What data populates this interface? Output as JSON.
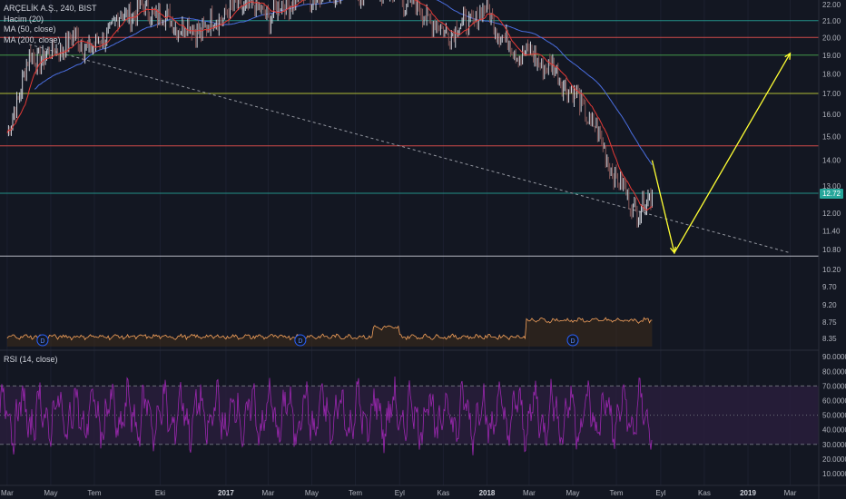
{
  "legend": {
    "symbol": "ARÇELİK A.Ş., 240, BIST",
    "volume": "Hacim (20)",
    "ma50": "MA (50, close)",
    "ma200": "MA (200, close)",
    "rsi": "RSI (14, close)"
  },
  "colors": {
    "background": "#131722",
    "price": "#c8ccd6",
    "ma50": "#e53935",
    "ma200": "#4a6ee0",
    "volume": "#f7a35c",
    "rsi": "#9c27b0",
    "rsi_band": "#2a1e3d",
    "arrow": "#ffff33",
    "badge": "#26a69a"
  },
  "current_price": "12.72",
  "chart_data": [
    {
      "type": "line",
      "title": "ARÇELİK A.Ş., 240, BIST",
      "y_ticks": [
        "22.00",
        "21.00",
        "20.00",
        "19.00",
        "18.00",
        "17.00",
        "16.00",
        "15.00",
        "14.00",
        "13.00",
        "12.00",
        "11.40",
        "10.80",
        "10.20",
        "9.70",
        "9.20",
        "8.75",
        "8.35"
      ],
      "x_ticks": [
        "Mar",
        "May",
        "Tem",
        "Eki",
        "2017",
        "Mar",
        "May",
        "Tem",
        "Eyl",
        "Kas",
        "2018",
        "Mar",
        "May",
        "Tem",
        "Eyl",
        "Kas",
        "2019",
        "Mar"
      ],
      "ylim": [
        8.2,
        22.2
      ],
      "scale": "log",
      "horizontal_levels": [
        {
          "value": 21.0,
          "color": "#26a69a"
        },
        {
          "value": 20.0,
          "color": "#ef5350"
        },
        {
          "value": 19.0,
          "color": "#4caf50"
        },
        {
          "value": 17.0,
          "color": "#cddc39"
        },
        {
          "value": 14.6,
          "color": "#ef5350"
        },
        {
          "value": 12.72,
          "color": "#26a69a"
        },
        {
          "value": 10.6,
          "color": "#d1d4dc"
        }
      ],
      "price_series": [
        {
          "date": "2016-03",
          "value": 15.0
        },
        {
          "date": "2016-04",
          "value": 18.8
        },
        {
          "date": "2016-05",
          "value": 19.0
        },
        {
          "date": "2016-06",
          "value": 20.0
        },
        {
          "date": "2016-07",
          "value": 19.3
        },
        {
          "date": "2016-08",
          "value": 21.0
        },
        {
          "date": "2016-09",
          "value": 21.8
        },
        {
          "date": "2016-10",
          "value": 21.3
        },
        {
          "date": "2016-11",
          "value": 20.6
        },
        {
          "date": "2016-12",
          "value": 20.5
        },
        {
          "date": "2017-01",
          "value": 21.5
        },
        {
          "date": "2017-02",
          "value": 22.1
        },
        {
          "date": "2017-03",
          "value": 21.3
        },
        {
          "date": "2017-04",
          "value": 22.3
        },
        {
          "date": "2017-05",
          "value": 22.6
        },
        {
          "date": "2017-06",
          "value": 23.0
        },
        {
          "date": "2017-07",
          "value": 23.0
        },
        {
          "date": "2017-08",
          "value": 23.0
        },
        {
          "date": "2017-09",
          "value": 22.6
        },
        {
          "date": "2017-10",
          "value": 21.7
        },
        {
          "date": "2017-11",
          "value": 20.3
        },
        {
          "date": "2017-12",
          "value": 20.7
        },
        {
          "date": "2018-01",
          "value": 21.7
        },
        {
          "date": "2018-02",
          "value": 19.4
        },
        {
          "date": "2018-03",
          "value": 19.0
        },
        {
          "date": "2018-04",
          "value": 18.3
        },
        {
          "date": "2018-05",
          "value": 17.0
        },
        {
          "date": "2018-06",
          "value": 15.4
        },
        {
          "date": "2018-07",
          "value": 13.2
        },
        {
          "date": "2018-08",
          "value": 12.0
        },
        {
          "date": "2018-08-20",
          "value": 12.72
        }
      ],
      "projection": [
        {
          "date": "2018-08-20",
          "value": 14.0
        },
        {
          "date": "2018-09-20",
          "value": 10.7
        },
        {
          "date": "2019-03-01",
          "value": 19.1
        }
      ],
      "trendline": [
        {
          "date": "2016-04",
          "value": 19.6
        },
        {
          "date": "2019-03",
          "value": 10.7
        }
      ]
    },
    {
      "type": "line",
      "title": "RSI (14, close)",
      "y_ticks": [
        "90.0000",
        "80.0000",
        "70.0000",
        "60.0000",
        "50.0000",
        "40.0000",
        "30.0000",
        "20.0000",
        "10.0000"
      ],
      "ylim": [
        5,
        92
      ],
      "bands": {
        "upper": 70,
        "lower": 30
      }
    }
  ]
}
